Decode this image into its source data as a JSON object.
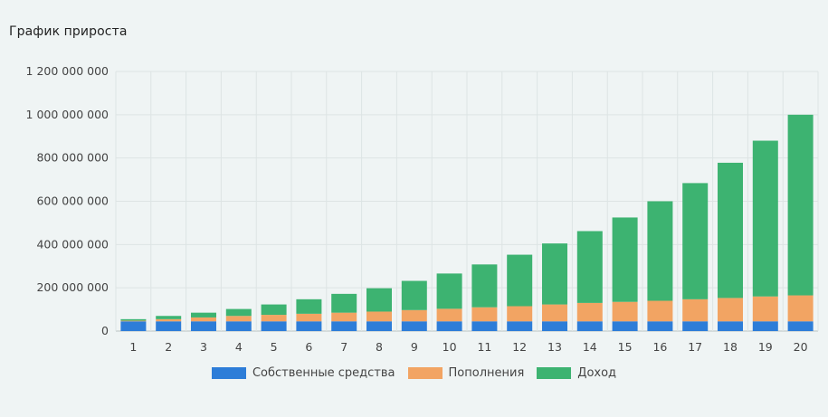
{
  "chart_data": {
    "type": "bar",
    "stacked": true,
    "title": "График прироста",
    "xlabel": "",
    "ylabel": "",
    "ylim": [
      0,
      1200000000
    ],
    "yticks": [
      0,
      200000000,
      400000000,
      600000000,
      800000000,
      1000000000,
      1200000000
    ],
    "ytick_labels": [
      "0",
      "200 000 000",
      "400 000 000",
      "600 000 000",
      "800 000 000",
      "1 000 000 000",
      "1 200 000 000"
    ],
    "grid": true,
    "legend_position": "bottom",
    "categories": [
      "1",
      "2",
      "3",
      "4",
      "5",
      "6",
      "7",
      "8",
      "9",
      "10",
      "11",
      "12",
      "13",
      "14",
      "15",
      "16",
      "17",
      "18",
      "19",
      "20"
    ],
    "series": [
      {
        "name": "Собственные средства",
        "color": "#2d7dd8",
        "values": [
          45000000,
          45000000,
          45000000,
          45000000,
          45000000,
          45000000,
          45000000,
          45000000,
          45000000,
          45000000,
          45000000,
          45000000,
          45000000,
          45000000,
          45000000,
          45000000,
          45000000,
          45000000,
          45000000,
          45000000
        ]
      },
      {
        "name": "Пополнения",
        "color": "#f2a463",
        "values": [
          3000000,
          10000000,
          18000000,
          25000000,
          30000000,
          35000000,
          40000000,
          45000000,
          52000000,
          58000000,
          65000000,
          70000000,
          78000000,
          85000000,
          90000000,
          95000000,
          102000000,
          108000000,
          115000000,
          120000000
        ]
      },
      {
        "name": "Доход",
        "color": "#3db371",
        "values": [
          7000000,
          15000000,
          22000000,
          32000000,
          48000000,
          67000000,
          87000000,
          108000000,
          135000000,
          163000000,
          198000000,
          238000000,
          282000000,
          332000000,
          390000000,
          460000000,
          537000000,
          625000000,
          720000000,
          835000000
        ]
      }
    ]
  }
}
